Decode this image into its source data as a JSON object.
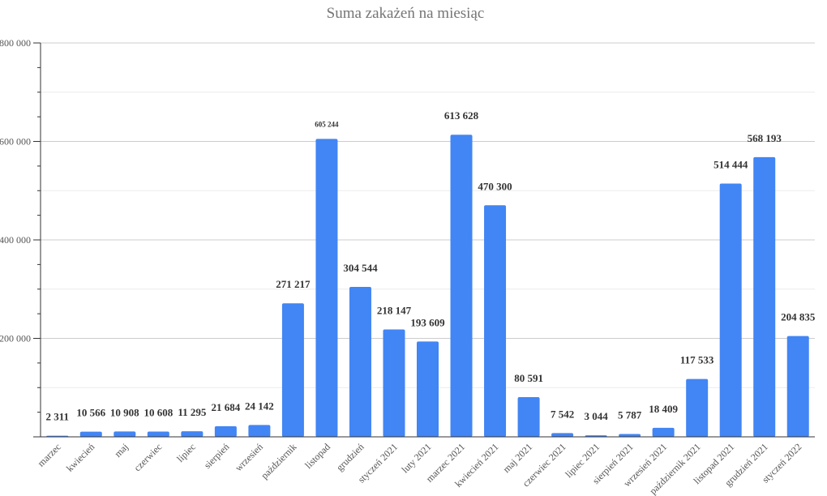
{
  "chart_data": {
    "type": "bar",
    "title": "Suma zakażeń na miesiąc",
    "xlabel": "",
    "ylabel": "",
    "ylim": [
      0,
      800000
    ],
    "yticks": [
      0,
      200000,
      400000,
      600000,
      800000
    ],
    "ytick_labels": [
      "",
      "200 000",
      "400 000",
      "600 000",
      "800 000"
    ],
    "grid": true,
    "legend": "none",
    "bar_color": "#4285f4",
    "categories": [
      "marzec",
      "kwiecień",
      "maj",
      "czerwiec",
      "lipiec",
      "sierpień",
      "wrzesień",
      "październik",
      "listopad",
      "grudzień",
      "styczeń 2021",
      "luty 2021",
      "marzec 2021",
      "kwiecień 2021",
      "maj 2021",
      "czerwiec 2021",
      "lipiec 2021",
      "sierpień 2021",
      "wrzesień 2021",
      "październik 2021",
      "listopad 2021",
      "grudzień 2021",
      "styczeń 2022"
    ],
    "values": [
      2311,
      10566,
      10908,
      10608,
      11295,
      21684,
      24142,
      271217,
      605244,
      304544,
      218147,
      193609,
      613628,
      470300,
      80591,
      7542,
      3044,
      5787,
      18409,
      117533,
      514444,
      568193,
      204835
    ],
    "data_labels": [
      "2 311",
      "10 566",
      "10 908",
      "10 608",
      "11 295",
      "21 684",
      "24 142",
      "271 217",
      "605 244",
      "304 544",
      "218 147",
      "193 609",
      "613 628",
      "470 300",
      "80 591",
      "7 542",
      "3 044",
      "5 787",
      "18 409",
      "117 533",
      "514 444",
      "568 193",
      "204 835"
    ]
  }
}
